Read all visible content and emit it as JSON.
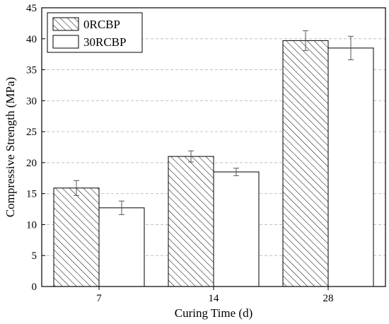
{
  "chart_data": {
    "type": "bar",
    "title": "",
    "xlabel": "Curing Time (d)",
    "ylabel": "Compressive Strength (MPa)",
    "categories": [
      "7",
      "14",
      "28"
    ],
    "ylim": [
      0,
      45
    ],
    "yticks": [
      0,
      5,
      10,
      15,
      20,
      25,
      30,
      35,
      40,
      45
    ],
    "grid": "horizontal dashed",
    "legend_position": "top-left",
    "series": [
      {
        "name": "0RCBP",
        "pattern": "diagonal-hatch",
        "values": [
          15.9,
          21.0,
          39.7
        ],
        "errors": [
          1.2,
          0.9,
          1.6
        ]
      },
      {
        "name": "30RCBP",
        "pattern": "none",
        "values": [
          12.7,
          18.5,
          38.5
        ],
        "errors": [
          1.1,
          0.6,
          1.9
        ]
      }
    ],
    "colors": {
      "outline": "#000000",
      "fill": "#ffffff",
      "grid": "#b8b8b8"
    }
  }
}
